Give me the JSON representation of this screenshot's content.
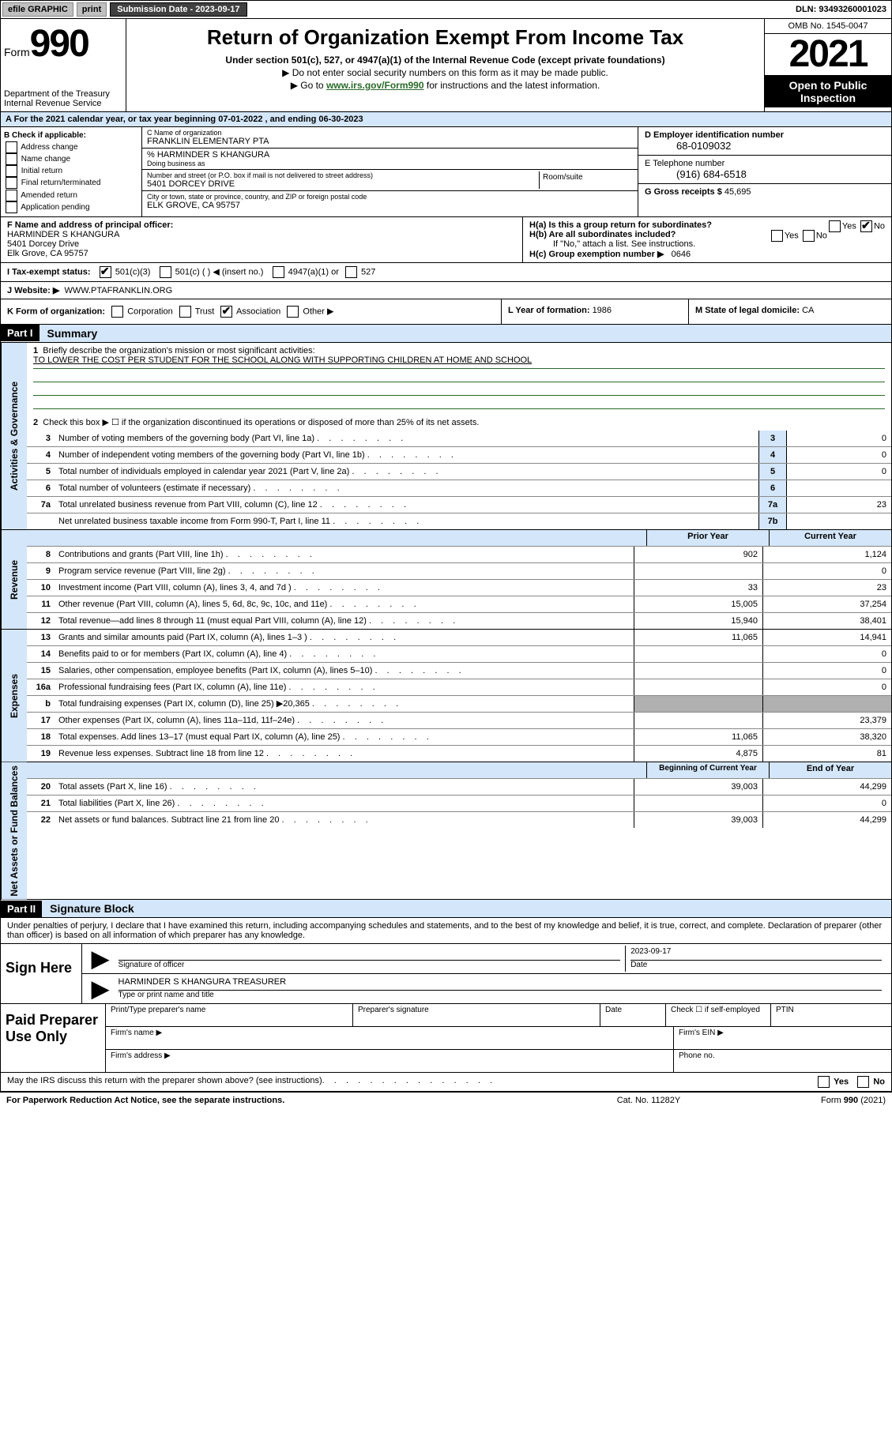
{
  "topbar": {
    "efile": "efile GRAPHIC",
    "print": "print",
    "submission_label": "Submission Date - 2023-09-17",
    "dln": "DLN: 93493260001023"
  },
  "header": {
    "form_prefix": "Form",
    "form_number": "990",
    "dept": "Department of the Treasury",
    "irs": "Internal Revenue Service",
    "title": "Return of Organization Exempt From Income Tax",
    "subtitle": "Under section 501(c), 527, or 4947(a)(1) of the Internal Revenue Code (except private foundations)",
    "note1": "▶ Do not enter social security numbers on this form as it may be made public.",
    "note2_pre": "▶ Go to ",
    "note2_link": "www.irs.gov/Form990",
    "note2_post": " for instructions and the latest information.",
    "omb": "OMB No. 1545-0047",
    "year": "2021",
    "inspect": "Open to Public Inspection"
  },
  "period": {
    "text_a": "A For the 2021 calendar year, or tax year beginning ",
    "begin": "07-01-2022",
    "mid": " , and ending ",
    "end": "06-30-2023"
  },
  "section_b": {
    "header": "B Check if applicable:",
    "items": [
      "Address change",
      "Name change",
      "Initial return",
      "Final return/terminated",
      "Amended return",
      "Application pending"
    ]
  },
  "section_c": {
    "name_label": "C Name of organization",
    "name": "FRANKLIN ELEMENTARY PTA",
    "careof_label": "% HARMINDER S KHANGURA",
    "dba_label": "Doing business as",
    "street_label": "Number and street (or P.O. box if mail is not delivered to street address)",
    "street": "5401 DORCEY DRIVE",
    "room_label": "Room/suite",
    "city_label": "City or town, state or province, country, and ZIP or foreign postal code",
    "city": "ELK GROVE, CA  95757"
  },
  "section_d": {
    "ein_label": "D Employer identification number",
    "ein": "68-0109032",
    "phone_label": "E Telephone number",
    "phone": "(916) 684-6518",
    "gross_label": "G Gross receipts $ ",
    "gross": "45,695"
  },
  "section_f": {
    "label": "F Name and address of principal officer:",
    "name": "HARMINDER S KHANGURA",
    "addr1": "5401 Dorcey Drive",
    "addr2": "Elk Grove, CA  95757"
  },
  "section_h": {
    "ha": "H(a)  Is this a group return for subordinates?",
    "hb": "H(b)  Are all subordinates included?",
    "hb_note": "If \"No,\" attach a list. See instructions.",
    "hc": "H(c)  Group exemption number ▶",
    "hc_val": "0646",
    "yes": "Yes",
    "no": "No"
  },
  "section_i": {
    "label": "I   Tax-exempt status:",
    "opt1": "501(c)(3)",
    "opt2": "501(c) (  ) ◀ (insert no.)",
    "opt3": "4947(a)(1) or",
    "opt4": "527"
  },
  "section_j": {
    "label": "J   Website: ▶",
    "value": "WWW.PTAFRANKLIN.ORG"
  },
  "section_k": {
    "label": "K Form of organization:",
    "opts": [
      "Corporation",
      "Trust",
      "Association",
      "Other ▶"
    ]
  },
  "section_l": {
    "label": "L Year of formation: ",
    "value": "1986"
  },
  "section_m": {
    "label": "M State of legal domicile: ",
    "value": "CA"
  },
  "part1": {
    "header": "Part I",
    "title": "Summary",
    "line1_label": "Briefly describe the organization's mission or most significant activities:",
    "mission": "TO LOWER THE COST PER STUDENT FOR THE SCHOOL ALONG WITH SUPPORTING CHILDREN AT HOME AND SCHOOL",
    "line2": "Check this box ▶ ☐  if the organization discontinued its operations or disposed of more than 25% of its net assets.",
    "vlabel_gov": "Activities & Governance",
    "vlabel_rev": "Revenue",
    "vlabel_exp": "Expenses",
    "vlabel_net": "Net Assets or Fund Balances",
    "rows_gov": [
      {
        "n": "3",
        "d": "Number of voting members of the governing body (Part VI, line 1a)",
        "box": "3",
        "v": "0"
      },
      {
        "n": "4",
        "d": "Number of independent voting members of the governing body (Part VI, line 1b)",
        "box": "4",
        "v": "0"
      },
      {
        "n": "5",
        "d": "Total number of individuals employed in calendar year 2021 (Part V, line 2a)",
        "box": "5",
        "v": "0"
      },
      {
        "n": "6",
        "d": "Total number of volunteers (estimate if necessary)",
        "box": "6",
        "v": ""
      },
      {
        "n": "7a",
        "d": "Total unrelated business revenue from Part VIII, column (C), line 12",
        "box": "7a",
        "v": "23"
      },
      {
        "n": "",
        "d": "Net unrelated business taxable income from Form 990-T, Part I, line 11",
        "box": "7b",
        "v": ""
      }
    ],
    "col_head_prior": "Prior Year",
    "col_head_current": "Current Year",
    "rows_rev": [
      {
        "n": "8",
        "d": "Contributions and grants (Part VIII, line 1h)",
        "p": "902",
        "c": "1,124"
      },
      {
        "n": "9",
        "d": "Program service revenue (Part VIII, line 2g)",
        "p": "",
        "c": "0"
      },
      {
        "n": "10",
        "d": "Investment income (Part VIII, column (A), lines 3, 4, and 7d )",
        "p": "33",
        "c": "23"
      },
      {
        "n": "11",
        "d": "Other revenue (Part VIII, column (A), lines 5, 6d, 8c, 9c, 10c, and 11e)",
        "p": "15,005",
        "c": "37,254"
      },
      {
        "n": "12",
        "d": "Total revenue—add lines 8 through 11 (must equal Part VIII, column (A), line 12)",
        "p": "15,940",
        "c": "38,401"
      }
    ],
    "rows_exp": [
      {
        "n": "13",
        "d": "Grants and similar amounts paid (Part IX, column (A), lines 1–3 )",
        "p": "11,065",
        "c": "14,941"
      },
      {
        "n": "14",
        "d": "Benefits paid to or for members (Part IX, column (A), line 4)",
        "p": "",
        "c": "0"
      },
      {
        "n": "15",
        "d": "Salaries, other compensation, employee benefits (Part IX, column (A), lines 5–10)",
        "p": "",
        "c": "0"
      },
      {
        "n": "16a",
        "d": "Professional fundraising fees (Part IX, column (A), line 11e)",
        "p": "",
        "c": "0"
      },
      {
        "n": "b",
        "d": "Total fundraising expenses (Part IX, column (D), line 25) ▶20,365",
        "p": "grey",
        "c": "grey"
      },
      {
        "n": "17",
        "d": "Other expenses (Part IX, column (A), lines 11a–11d, 11f–24e)",
        "p": "",
        "c": "23,379"
      },
      {
        "n": "18",
        "d": "Total expenses. Add lines 13–17 (must equal Part IX, column (A), line 25)",
        "p": "11,065",
        "c": "38,320"
      },
      {
        "n": "19",
        "d": "Revenue less expenses. Subtract line 18 from line 12",
        "p": "4,875",
        "c": "81"
      }
    ],
    "col_head_begin": "Beginning of Current Year",
    "col_head_end": "End of Year",
    "rows_net": [
      {
        "n": "20",
        "d": "Total assets (Part X, line 16)",
        "p": "39,003",
        "c": "44,299"
      },
      {
        "n": "21",
        "d": "Total liabilities (Part X, line 26)",
        "p": "",
        "c": "0"
      },
      {
        "n": "22",
        "d": "Net assets or fund balances. Subtract line 21 from line 20",
        "p": "39,003",
        "c": "44,299"
      }
    ]
  },
  "part2": {
    "header": "Part II",
    "title": "Signature Block",
    "intro": "Under penalties of perjury, I declare that I have examined this return, including accompanying schedules and statements, and to the best of my knowledge and belief, it is true, correct, and complete. Declaration of preparer (other than officer) is based on all information of which preparer has any knowledge.",
    "sign_here": "Sign Here",
    "sig_officer": "Signature of officer",
    "sig_date_label": "Date",
    "sig_date": "2023-09-17",
    "officer_name": "HARMINDER S KHANGURA  TREASURER",
    "type_name": "Type or print name and title",
    "paid": "Paid Preparer Use Only",
    "prep_name": "Print/Type preparer's name",
    "prep_sig": "Preparer's signature",
    "prep_date": "Date",
    "prep_check": "Check ☐ if self-employed",
    "ptin": "PTIN",
    "firm_name": "Firm's name  ▶",
    "firm_ein": "Firm's EIN ▶",
    "firm_addr": "Firm's address ▶",
    "firm_phone": "Phone no."
  },
  "irs_discuss": "May the IRS discuss this return with the preparer shown above? (see instructions)",
  "footer": {
    "left": "For Paperwork Reduction Act Notice, see the separate instructions.",
    "mid": "Cat. No. 11282Y",
    "right_pre": "Form ",
    "right_bold": "990",
    "right_post": " (2021)"
  }
}
